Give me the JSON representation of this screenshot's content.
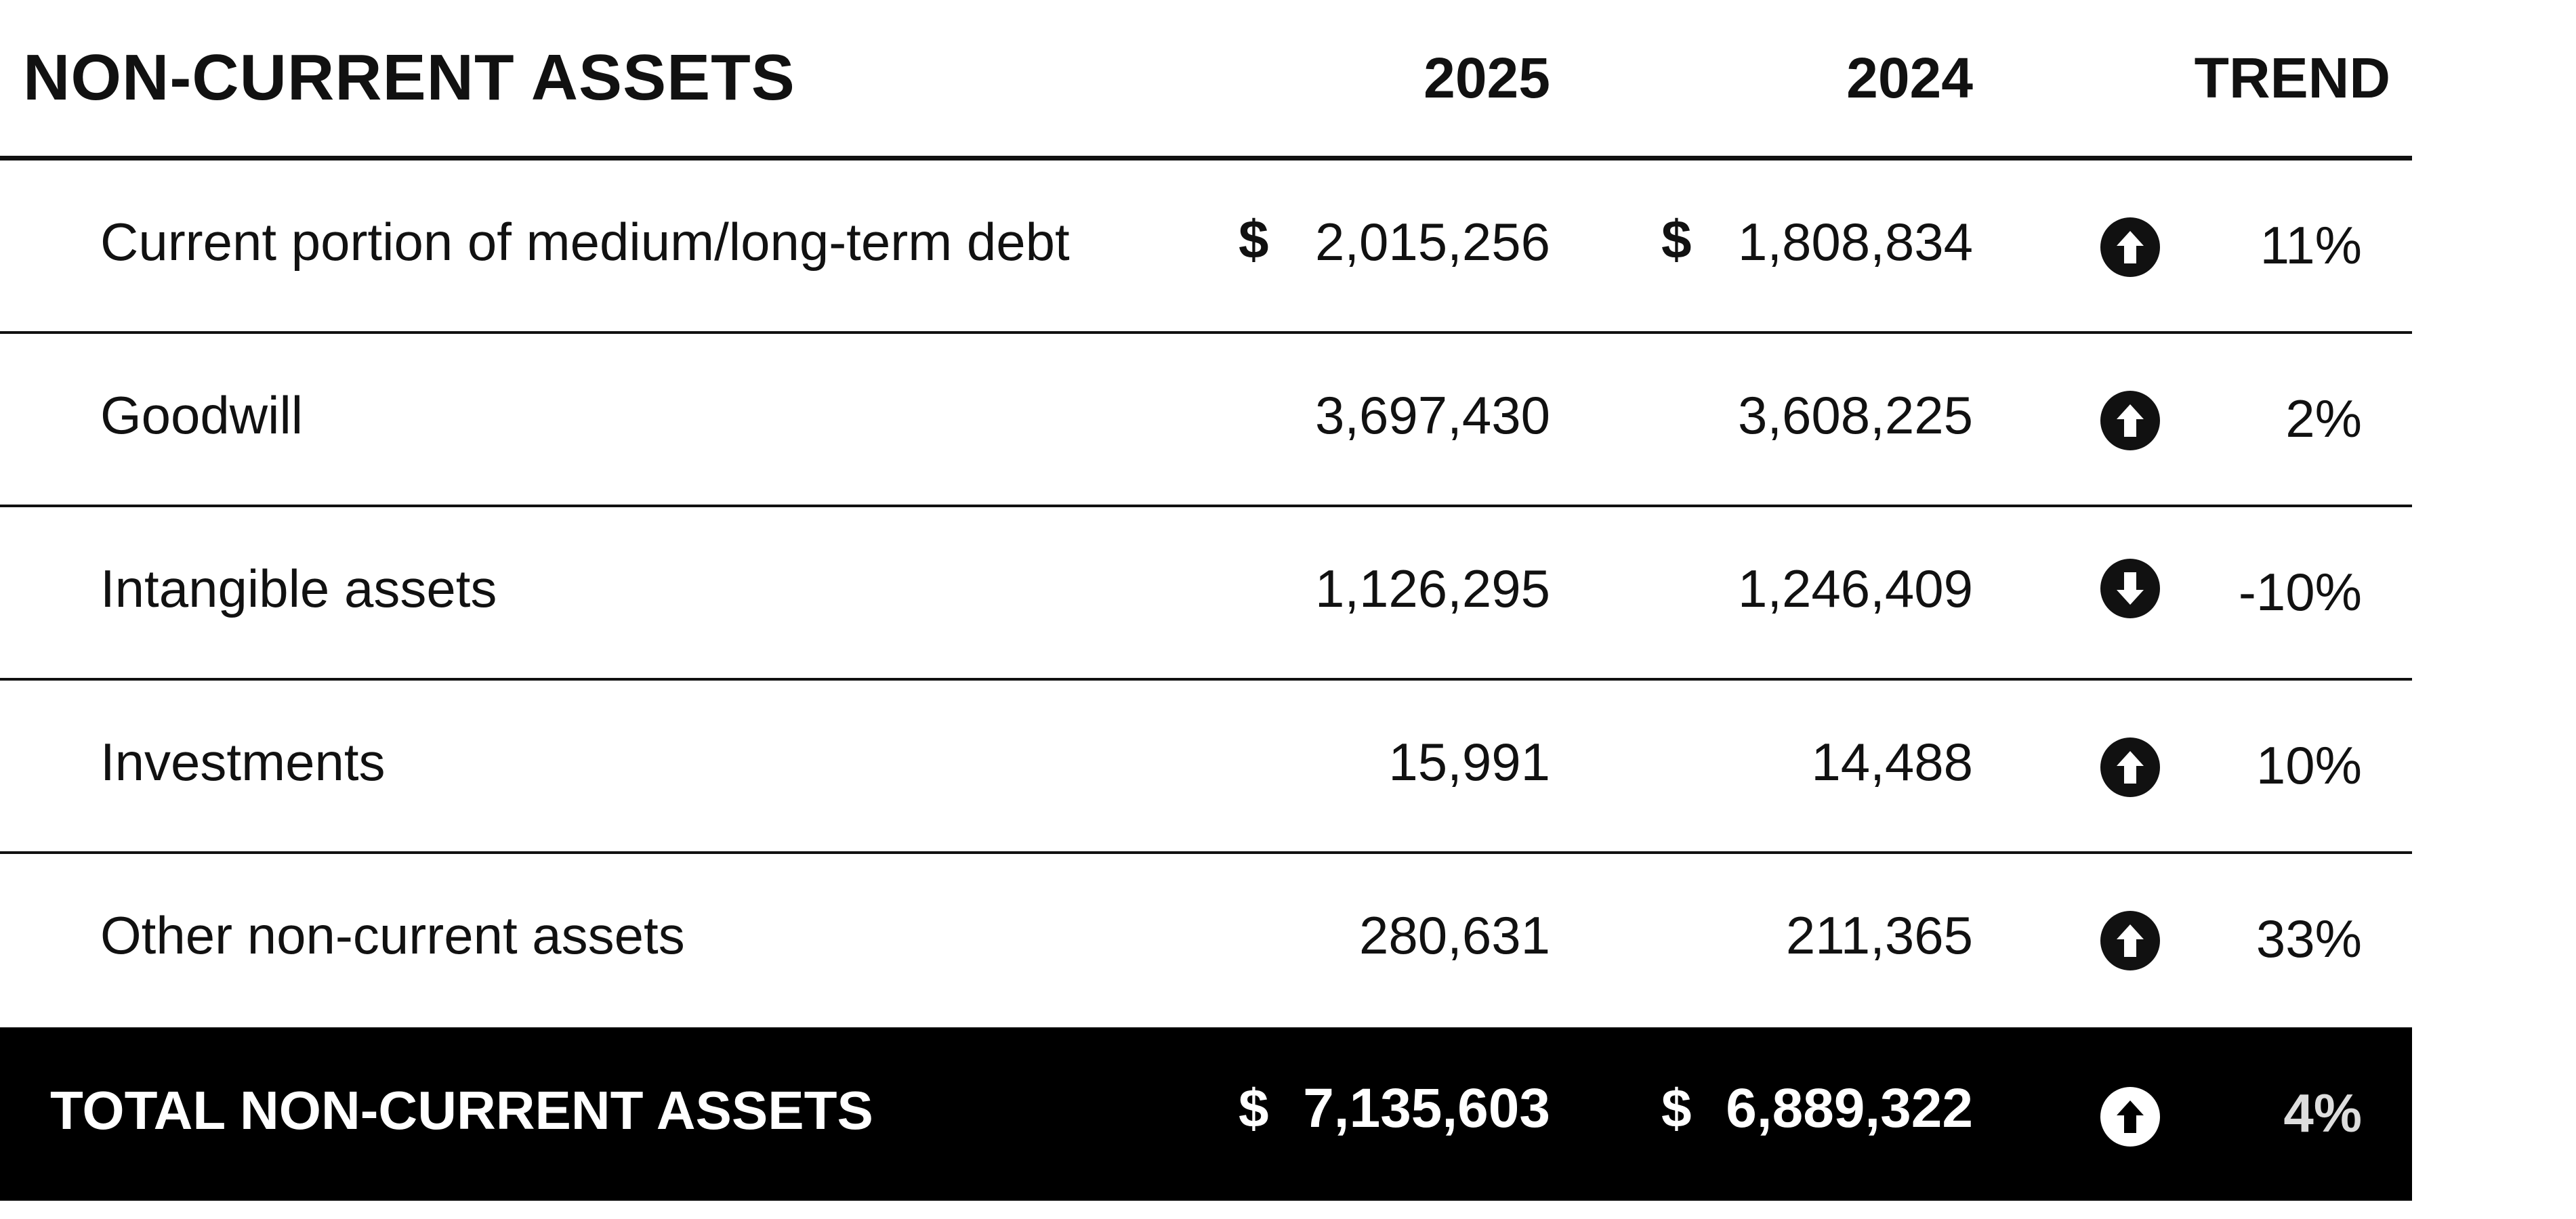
{
  "header": {
    "title": "NON-CURRENT ASSETS",
    "col_2025": "2025",
    "col_2024": "2024",
    "col_trend": "TREND"
  },
  "rows": [
    {
      "label": "Current portion of medium/long-term debt",
      "dollar_2025": "$",
      "value_2025": "2,015,256",
      "dollar_2024": "$",
      "value_2024": "1,808,834",
      "trend_icon": "arrow-up-icon",
      "trend_pct": "11%"
    },
    {
      "label": "Goodwill",
      "dollar_2025": "",
      "value_2025": "3,697,430",
      "dollar_2024": "",
      "value_2024": "3,608,225",
      "trend_icon": "arrow-up-icon",
      "trend_pct": "2%"
    },
    {
      "label": "Intangible assets",
      "dollar_2025": "",
      "value_2025": "1,126,295",
      "dollar_2024": "",
      "value_2024": "1,246,409",
      "trend_icon": "arrow-down-icon",
      "trend_pct": "-10%"
    },
    {
      "label": "Investments",
      "dollar_2025": "",
      "value_2025": "15,991",
      "dollar_2024": "",
      "value_2024": "14,488",
      "trend_icon": "arrow-up-icon",
      "trend_pct": "10%"
    },
    {
      "label": "Other non-current assets",
      "dollar_2025": "",
      "value_2025": "280,631",
      "dollar_2024": "",
      "value_2024": "211,365",
      "trend_icon": "arrow-up-icon",
      "trend_pct": "33%"
    }
  ],
  "total": {
    "label": "TOTAL NON-CURRENT ASSETS",
    "dollar_2025": "$",
    "value_2025": "7,135,603",
    "dollar_2024": "$",
    "value_2024": "6,889,322",
    "trend_icon": "arrow-up-icon",
    "trend_pct": "4%"
  },
  "colors": {
    "text": "#111111",
    "total_background": "#000000",
    "total_text": "#ffffff"
  }
}
